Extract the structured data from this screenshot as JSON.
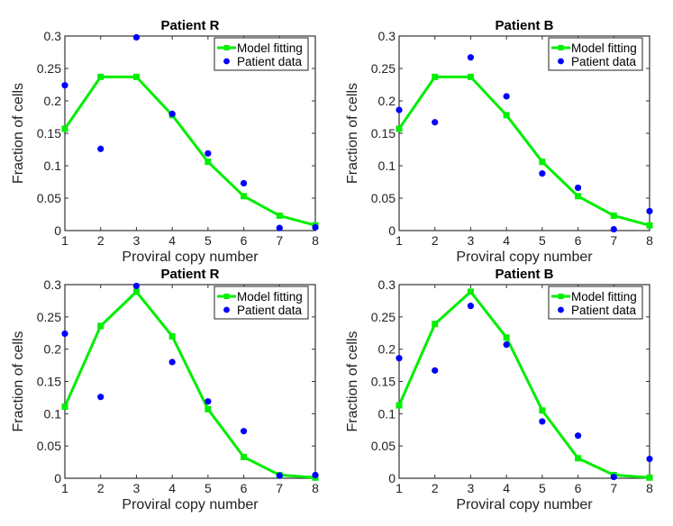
{
  "chart_data": [
    {
      "type": "line",
      "title": "Patient R",
      "xlabel": "Proviral copy number",
      "ylabel": "Fraction of cells",
      "x": [
        1,
        2,
        3,
        4,
        5,
        6,
        7,
        8
      ],
      "xlim": [
        1,
        8
      ],
      "ylim": [
        0,
        0.3
      ],
      "xticks": [
        "1",
        "2",
        "3",
        "4",
        "5",
        "6",
        "7",
        "8"
      ],
      "yticks": [
        "0",
        "0.05",
        "0.1",
        "0.15",
        "0.2",
        "0.25",
        "0.3"
      ],
      "ytick_values": [
        0,
        0.05,
        0.1,
        0.15,
        0.2,
        0.25,
        0.3
      ],
      "legend_position": "top-right",
      "series": [
        {
          "name": "Model fitting",
          "style": "line-square",
          "color": "#00ee00",
          "values": [
            0.157,
            0.237,
            0.237,
            0.178,
            0.106,
            0.053,
            0.023,
            0.008
          ]
        },
        {
          "name": "Patient data",
          "style": "dot",
          "color": "#0000ff",
          "values": [
            0.224,
            0.126,
            0.298,
            0.18,
            0.119,
            0.073,
            0.004,
            0.005
          ]
        }
      ]
    },
    {
      "type": "line",
      "title": "Patient B",
      "xlabel": "Proviral copy number",
      "ylabel": "Fraction of cells",
      "x": [
        1,
        2,
        3,
        4,
        5,
        6,
        7,
        8
      ],
      "xlim": [
        1,
        8
      ],
      "ylim": [
        0,
        0.3
      ],
      "xticks": [
        "1",
        "2",
        "3",
        "4",
        "5",
        "6",
        "7",
        "8"
      ],
      "yticks": [
        "0",
        "0.05",
        "0.1",
        "0.15",
        "0.2",
        "0.25",
        "0.3"
      ],
      "ytick_values": [
        0,
        0.05,
        0.1,
        0.15,
        0.2,
        0.25,
        0.3
      ],
      "legend_position": "top-right",
      "series": [
        {
          "name": "Model fitting",
          "style": "line-square",
          "color": "#00ee00",
          "values": [
            0.157,
            0.237,
            0.237,
            0.178,
            0.106,
            0.053,
            0.023,
            0.008
          ]
        },
        {
          "name": "Patient data",
          "style": "dot",
          "color": "#0000ff",
          "values": [
            0.186,
            0.167,
            0.267,
            0.207,
            0.088,
            0.066,
            0.002,
            0.03
          ]
        }
      ]
    },
    {
      "type": "line",
      "title": "Patient R",
      "xlabel": "Proviral copy number",
      "ylabel": "Fraction of cells",
      "x": [
        1,
        2,
        3,
        4,
        5,
        6,
        7,
        8
      ],
      "xlim": [
        1,
        8
      ],
      "ylim": [
        0,
        0.3
      ],
      "xticks": [
        "1",
        "2",
        "3",
        "4",
        "5",
        "6",
        "7",
        "8"
      ],
      "yticks": [
        "0",
        "0.05",
        "0.1",
        "0.15",
        "0.2",
        "0.25",
        "0.3"
      ],
      "ytick_values": [
        0,
        0.05,
        0.1,
        0.15,
        0.2,
        0.25,
        0.3
      ],
      "legend_position": "top-right",
      "series": [
        {
          "name": "Model fitting",
          "style": "line-square",
          "color": "#00ee00",
          "values": [
            0.111,
            0.236,
            0.289,
            0.22,
            0.107,
            0.033,
            0.005,
            0.001
          ]
        },
        {
          "name": "Patient data",
          "style": "dot",
          "color": "#0000ff",
          "values": [
            0.224,
            0.126,
            0.298,
            0.18,
            0.119,
            0.073,
            0.004,
            0.005
          ]
        }
      ]
    },
    {
      "type": "line",
      "title": "Patient B",
      "xlabel": "Proviral copy number",
      "ylabel": "Fraction of cells",
      "x": [
        1,
        2,
        3,
        4,
        5,
        6,
        7,
        8
      ],
      "xlim": [
        1,
        8
      ],
      "ylim": [
        0,
        0.3
      ],
      "xticks": [
        "1",
        "2",
        "3",
        "4",
        "5",
        "6",
        "7",
        "8"
      ],
      "yticks": [
        "0",
        "0.05",
        "0.1",
        "0.15",
        "0.2",
        "0.25",
        "0.3"
      ],
      "ytick_values": [
        0,
        0.05,
        0.1,
        0.15,
        0.2,
        0.25,
        0.3
      ],
      "legend_position": "top-right",
      "series": [
        {
          "name": "Model fitting",
          "style": "line-square",
          "color": "#00ee00",
          "values": [
            0.113,
            0.239,
            0.289,
            0.218,
            0.105,
            0.031,
            0.005,
            0.001
          ]
        },
        {
          "name": "Patient data",
          "style": "dot",
          "color": "#0000ff",
          "values": [
            0.186,
            0.167,
            0.267,
            0.207,
            0.088,
            0.066,
            0.002,
            0.03
          ]
        }
      ]
    }
  ]
}
